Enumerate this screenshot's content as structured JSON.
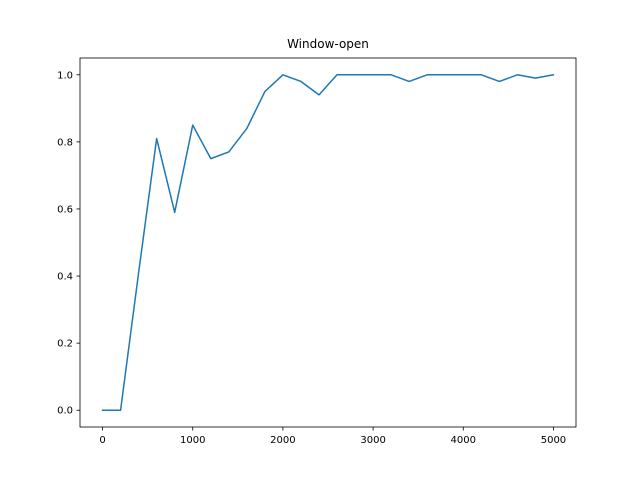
{
  "chart_data": {
    "type": "line",
    "title": "Window-open",
    "xlabel": "",
    "ylabel": "",
    "xlim": [
      -250,
      5250
    ],
    "ylim": [
      -0.05,
      1.05
    ],
    "x_ticks": [
      0,
      1000,
      2000,
      3000,
      4000,
      5000
    ],
    "y_ticks": [
      0.0,
      0.2,
      0.4,
      0.6,
      0.8,
      1.0
    ],
    "y_tick_labels": [
      "0.0",
      "0.2",
      "0.4",
      "0.6",
      "0.8",
      "1.0"
    ],
    "grid": false,
    "series": [
      {
        "color": "#1f77b4",
        "x": [
          0,
          200,
          400,
          600,
          800,
          1000,
          1200,
          1400,
          1600,
          1800,
          2000,
          2200,
          2400,
          2600,
          2800,
          3000,
          3200,
          3400,
          3600,
          3800,
          4000,
          4200,
          4400,
          4600,
          4800,
          5000
        ],
        "y": [
          0.0,
          0.0,
          0.41,
          0.81,
          0.59,
          0.85,
          0.75,
          0.77,
          0.84,
          0.95,
          1.0,
          0.98,
          0.94,
          1.0,
          1.0,
          1.0,
          1.0,
          0.98,
          1.0,
          1.0,
          1.0,
          1.0,
          0.98,
          1.0,
          0.99,
          1.0
        ]
      }
    ]
  }
}
